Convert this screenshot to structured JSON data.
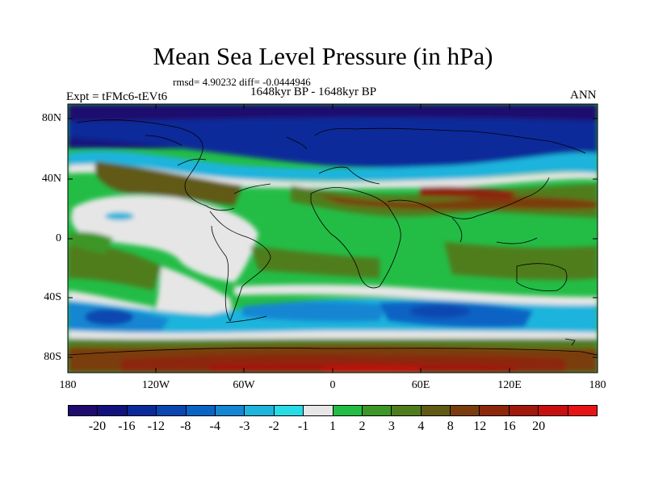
{
  "header": {
    "title": "Mean Sea Level Pressure (in hPa)",
    "stats": "rmsd= 4.90232 diff= -0.0444946",
    "period": "1648kyr BP - 1648kyr BP",
    "experiment": "Expt = tFMc6-tEVt6",
    "season": "ANN"
  },
  "map": {
    "lat_labels": [
      "80N",
      "40N",
      "0",
      "40S",
      "80S"
    ],
    "lon_labels": [
      "180",
      "120W",
      "60W",
      "0",
      "60E",
      "120E",
      "180"
    ]
  },
  "colorbar": {
    "colors": [
      "#1f0a6e",
      "#12127d",
      "#0a2a9a",
      "#0a46b0",
      "#0a64c4",
      "#1486d2",
      "#1eb4dc",
      "#28dce6",
      "#e6e6e6",
      "#23bd46",
      "#3c9628",
      "#4f7d1e",
      "#605a14",
      "#7a3c0c",
      "#8c280a",
      "#a0190a",
      "#c80f0f",
      "#e61414"
    ],
    "labels": [
      "-20",
      "-16",
      "-12",
      "-8",
      "-4",
      "-3",
      "-2",
      "-1",
      "1",
      "2",
      "3",
      "4",
      "8",
      "12",
      "16",
      "20"
    ]
  }
}
